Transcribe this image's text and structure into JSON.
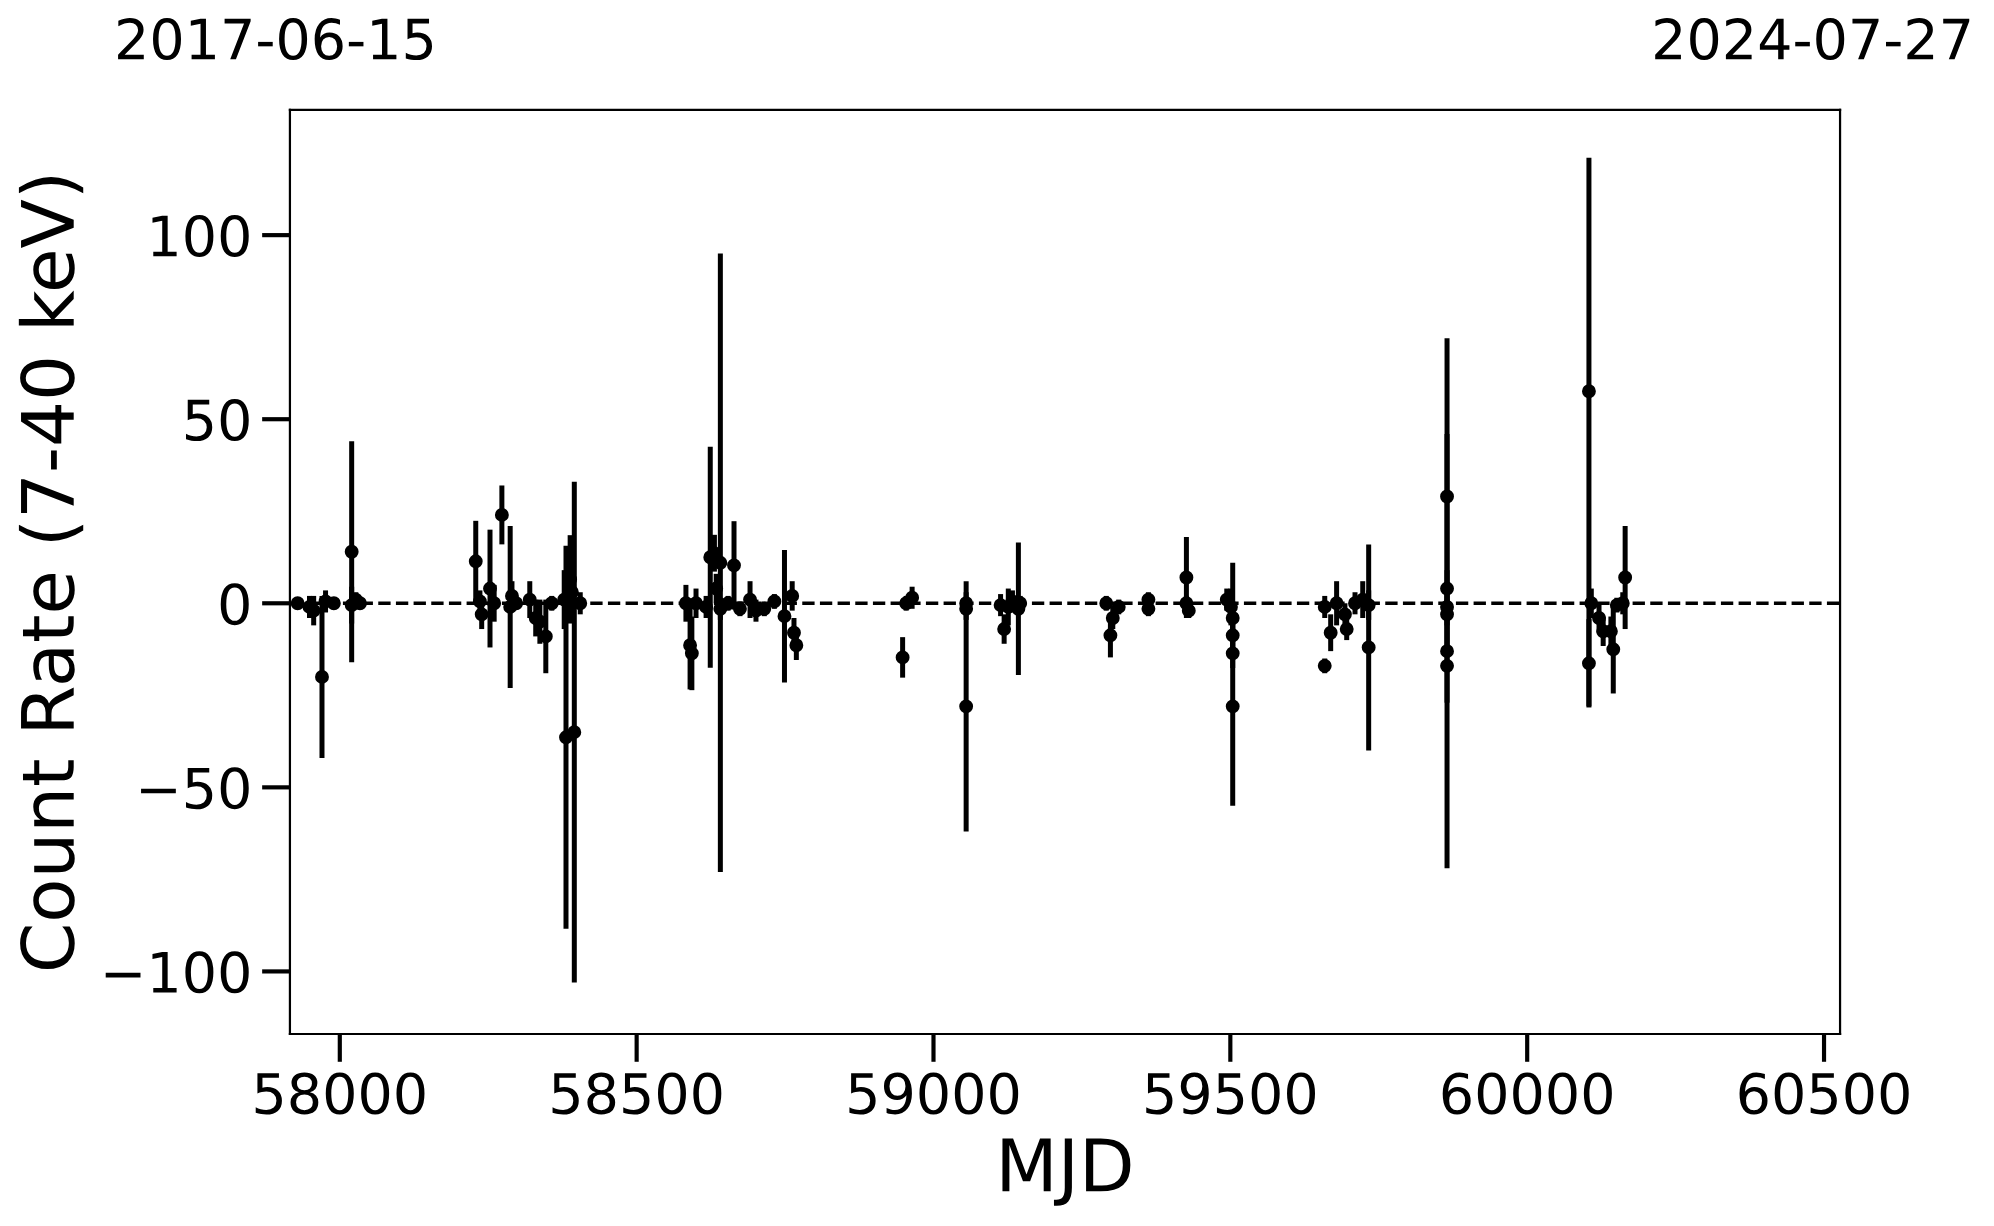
{
  "chart_data": {
    "type": "scatter",
    "xlabel": "MJD",
    "ylabel": "Count Rate (7-40 keV)",
    "annotations": [
      "2017-06-15",
      "2024-07-27"
    ],
    "xlim": [
      57916,
      60527
    ],
    "ylim": [
      -117,
      134
    ],
    "xticks": [
      58000,
      58500,
      59000,
      59500,
      60000,
      60500
    ],
    "yticks": [
      -100,
      -50,
      0,
      50,
      100
    ],
    "grid": false,
    "marker": "circle",
    "ref_lines": [
      {
        "axis": "y",
        "value": 0,
        "color": "#000000",
        "line_style": "dashed"
      }
    ],
    "series": [
      {
        "color": "#000000",
        "x": [
          57929,
          57949,
          57956,
          57970,
          57976,
          57990,
          58020,
          58020,
          58027,
          58034,
          58229,
          58236,
          58239,
          58253,
          58260,
          58273,
          58287,
          58290,
          58297,
          58320,
          58330,
          58337,
          58347,
          58357,
          58378,
          58381,
          58388,
          58391,
          58395,
          58405,
          58583,
          58590,
          58593,
          58600,
          58617,
          58624,
          58631,
          58634,
          58641,
          58641,
          58654,
          58664,
          58674,
          58691,
          58701,
          58715,
          58732,
          58749,
          58762,
          58765,
          58769,
          58948,
          58954,
          58964,
          59055,
          59055,
          59055,
          59113,
          59119,
          59126,
          59133,
          59143,
          59146,
          59291,
          59298,
          59302,
          59312,
          59362,
          59362,
          59426,
          59426,
          59430,
          59494,
          59501,
          59504,
          59504,
          59504,
          59504,
          59659,
          59659,
          59669,
          59679,
          59693,
          59696,
          59710,
          59723,
          59733,
          59733,
          59865,
          59865,
          59865,
          59865,
          59865,
          59865,
          60104,
          60104,
          60108,
          60121,
          60128,
          60141,
          60145,
          60151,
          60161,
          60165
        ],
        "values": [
          0,
          -1,
          -2,
          -20,
          0.5,
          0,
          14,
          -0.5,
          1,
          0,
          11.4,
          0.5,
          -3,
          4,
          0,
          24,
          -1,
          2,
          0,
          1,
          -4,
          -5,
          -9,
          0,
          1,
          -36.4,
          6.5,
          3,
          -35,
          0,
          0,
          -11.4,
          -13.6,
          0,
          -1,
          12.5,
          13.6,
          4,
          11,
          -1.5,
          0,
          10.3,
          -1.5,
          1,
          -2,
          -1.5,
          0.5,
          -3.5,
          2,
          -8,
          -11.4,
          -14.7,
          0,
          1.5,
          0,
          -1.5,
          -28,
          -0.5,
          -7,
          -1,
          0.5,
          -1.5,
          0,
          0,
          -8.7,
          -4,
          -1,
          1,
          -1.5,
          7,
          0,
          -2,
          1,
          -1,
          -4,
          -8.7,
          -13.6,
          -28,
          -1,
          -17,
          -8,
          0,
          -3,
          -7,
          0,
          1,
          -0.5,
          -12,
          29,
          4,
          -1,
          -3,
          -13,
          -17,
          57.6,
          -16.3,
          0,
          -4,
          -7.6,
          -7.6,
          -12.5,
          -0.5,
          0,
          7
        ],
        "errors": [
          1,
          3,
          4,
          22,
          3,
          1,
          30,
          5,
          2,
          1,
          11,
          3,
          4,
          16,
          5,
          8,
          22,
          4,
          1,
          5,
          5,
          6,
          10,
          2,
          8,
          52,
          12,
          5,
          68,
          3,
          5,
          12,
          10,
          4,
          3,
          30,
          5,
          4,
          84,
          3,
          2,
          12,
          2,
          5,
          3,
          2,
          2,
          18,
          4,
          4,
          4,
          5.5,
          2,
          3,
          3,
          3,
          34,
          3,
          4,
          5,
          3,
          18,
          2,
          2,
          6,
          3,
          2,
          2,
          2,
          11,
          2,
          2,
          3,
          5,
          3,
          4,
          4,
          [
            -55,
            11
          ],
          3,
          2,
          5,
          6,
          3,
          3,
          3,
          5,
          4,
          28,
          43,
          5,
          5,
          4,
          59,
          10,
          [
            -28,
            121
          ],
          12,
          4,
          4,
          4,
          4,
          12,
          2,
          3,
          14
        ]
      }
    ]
  }
}
